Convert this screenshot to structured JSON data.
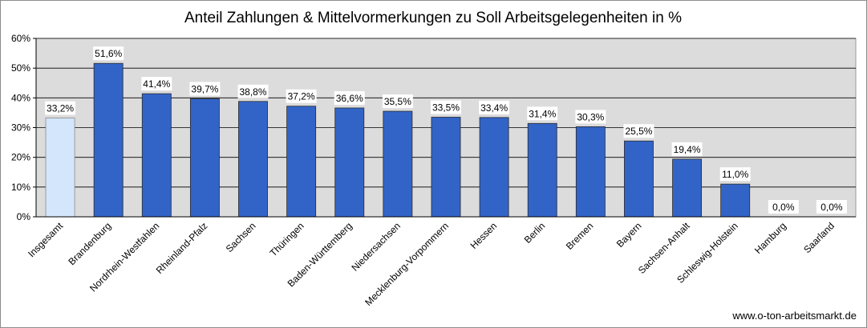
{
  "chart_data": {
    "type": "bar",
    "title": "Anteil Zahlungen & Mittelvormerkungen zu Soll Arbeitsgelegenheiten in %",
    "xlabel": "",
    "ylabel": "",
    "ylim": [
      0,
      60
    ],
    "yticks": [
      0,
      10,
      20,
      30,
      40,
      50,
      60
    ],
    "ytick_labels": [
      "0%",
      "10%",
      "20%",
      "30%",
      "40%",
      "50%",
      "60%"
    ],
    "grid": true,
    "legend": "none",
    "categories": [
      "Insgesamt",
      "Brandenburg",
      "Nordrhein-Westfahlen",
      "Rheinland-Pfalz",
      "Sachsen",
      "Thüringen",
      "Baden-Württemberg",
      "Niedersachsen",
      "Mecklenburg-Vorpommern",
      "Hessen",
      "Berlin",
      "Bremen",
      "Bayern",
      "Sachsen-Anhalt",
      "Schleswig-Holstein",
      "Hamburg",
      "Saarland"
    ],
    "values": [
      33.2,
      51.6,
      41.4,
      39.7,
      38.8,
      37.2,
      36.6,
      35.5,
      33.5,
      33.4,
      31.4,
      30.3,
      25.5,
      19.4,
      11.0,
      0.0,
      0.0
    ],
    "data_labels": [
      "33,2%",
      "51,6%",
      "41,4%",
      "39,7%",
      "38,8%",
      "37,2%",
      "36,6%",
      "35,5%",
      "33,5%",
      "33,4%",
      "31,4%",
      "30,3%",
      "25,5%",
      "19,4%",
      "11,0%",
      "0,0%",
      "0,0%"
    ],
    "colors": {
      "highlight_bar": "#d3e6fb",
      "bar": "#3264c8",
      "plot_background": "#dcdcdc",
      "gridline": "#000000"
    }
  },
  "source_text": "www.o-ton-arbeitsmarkt.de"
}
